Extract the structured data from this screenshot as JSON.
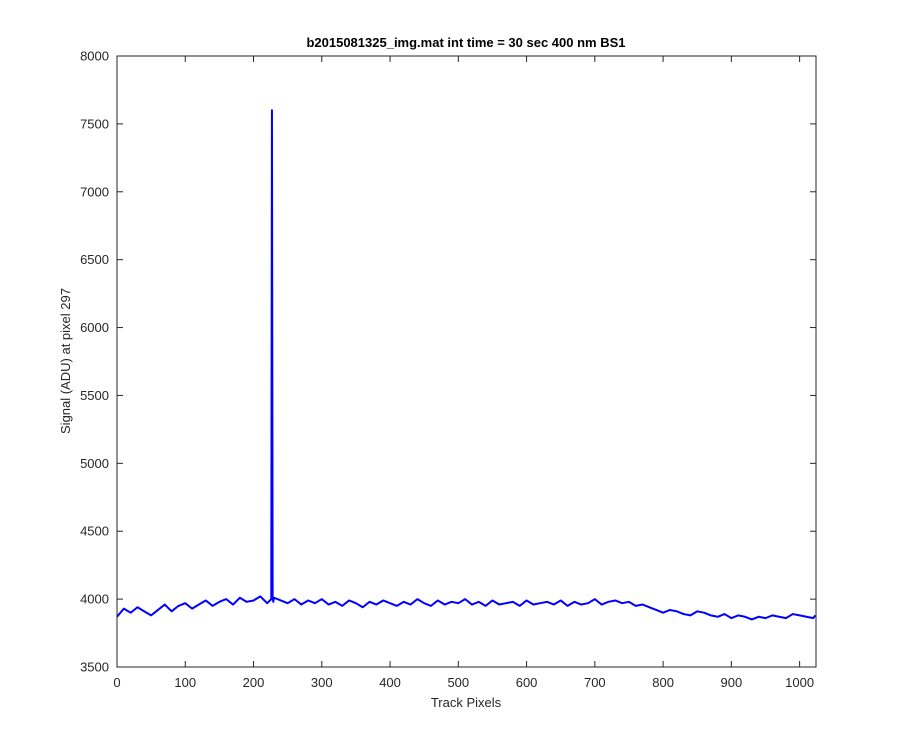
{
  "chart_data": {
    "type": "line",
    "title": "b2015081325_img.mat int time = 30 sec  400 nm BS1",
    "xlabel": "Track Pixels",
    "ylabel": "Signal (ADU) at pixel 297",
    "xlim": [
      0,
      1024
    ],
    "ylim": [
      3500,
      8000
    ],
    "xticks": [
      0,
      100,
      200,
      300,
      400,
      500,
      600,
      700,
      800,
      900,
      1000
    ],
    "yticks": [
      3500,
      4000,
      4500,
      5000,
      5500,
      6000,
      6500,
      7000,
      7500,
      8000
    ],
    "grid": false,
    "box": true,
    "series": [
      {
        "color": "#0000ff",
        "line_width": 2,
        "x": [
          0,
          10,
          20,
          30,
          40,
          50,
          60,
          70,
          80,
          90,
          100,
          110,
          120,
          130,
          140,
          150,
          160,
          170,
          180,
          190,
          200,
          210,
          220,
          226,
          227,
          228,
          229,
          230,
          240,
          250,
          260,
          270,
          280,
          290,
          300,
          310,
          320,
          330,
          340,
          350,
          360,
          370,
          380,
          390,
          400,
          410,
          420,
          430,
          440,
          450,
          460,
          470,
          480,
          490,
          500,
          510,
          520,
          530,
          540,
          550,
          560,
          570,
          580,
          590,
          600,
          610,
          620,
          630,
          640,
          650,
          660,
          670,
          680,
          690,
          700,
          710,
          720,
          730,
          740,
          750,
          760,
          770,
          780,
          790,
          800,
          810,
          820,
          830,
          840,
          850,
          860,
          870,
          880,
          890,
          900,
          910,
          920,
          930,
          940,
          950,
          960,
          970,
          980,
          990,
          1000,
          1010,
          1020,
          1023
        ],
        "y": [
          3870,
          3930,
          3900,
          3940,
          3910,
          3880,
          3920,
          3960,
          3910,
          3950,
          3970,
          3930,
          3960,
          3990,
          3950,
          3980,
          4000,
          3960,
          4010,
          3980,
          3990,
          4020,
          3970,
          4000,
          7600,
          4020,
          3980,
          4010,
          3990,
          3970,
          4000,
          3960,
          3990,
          3970,
          4000,
          3960,
          3980,
          3950,
          3990,
          3970,
          3940,
          3980,
          3960,
          3990,
          3970,
          3950,
          3980,
          3960,
          4000,
          3970,
          3950,
          3990,
          3960,
          3980,
          3970,
          4000,
          3960,
          3980,
          3950,
          3990,
          3960,
          3970,
          3980,
          3950,
          3990,
          3960,
          3970,
          3980,
          3960,
          3990,
          3950,
          3980,
          3960,
          3970,
          4000,
          3960,
          3980,
          3990,
          3970,
          3980,
          3950,
          3960,
          3940,
          3920,
          3900,
          3920,
          3910,
          3890,
          3880,
          3910,
          3900,
          3880,
          3870,
          3890,
          3860,
          3880,
          3870,
          3850,
          3870,
          3860,
          3880,
          3870,
          3860,
          3890,
          3880,
          3870,
          3860,
          3880
        ]
      }
    ]
  }
}
